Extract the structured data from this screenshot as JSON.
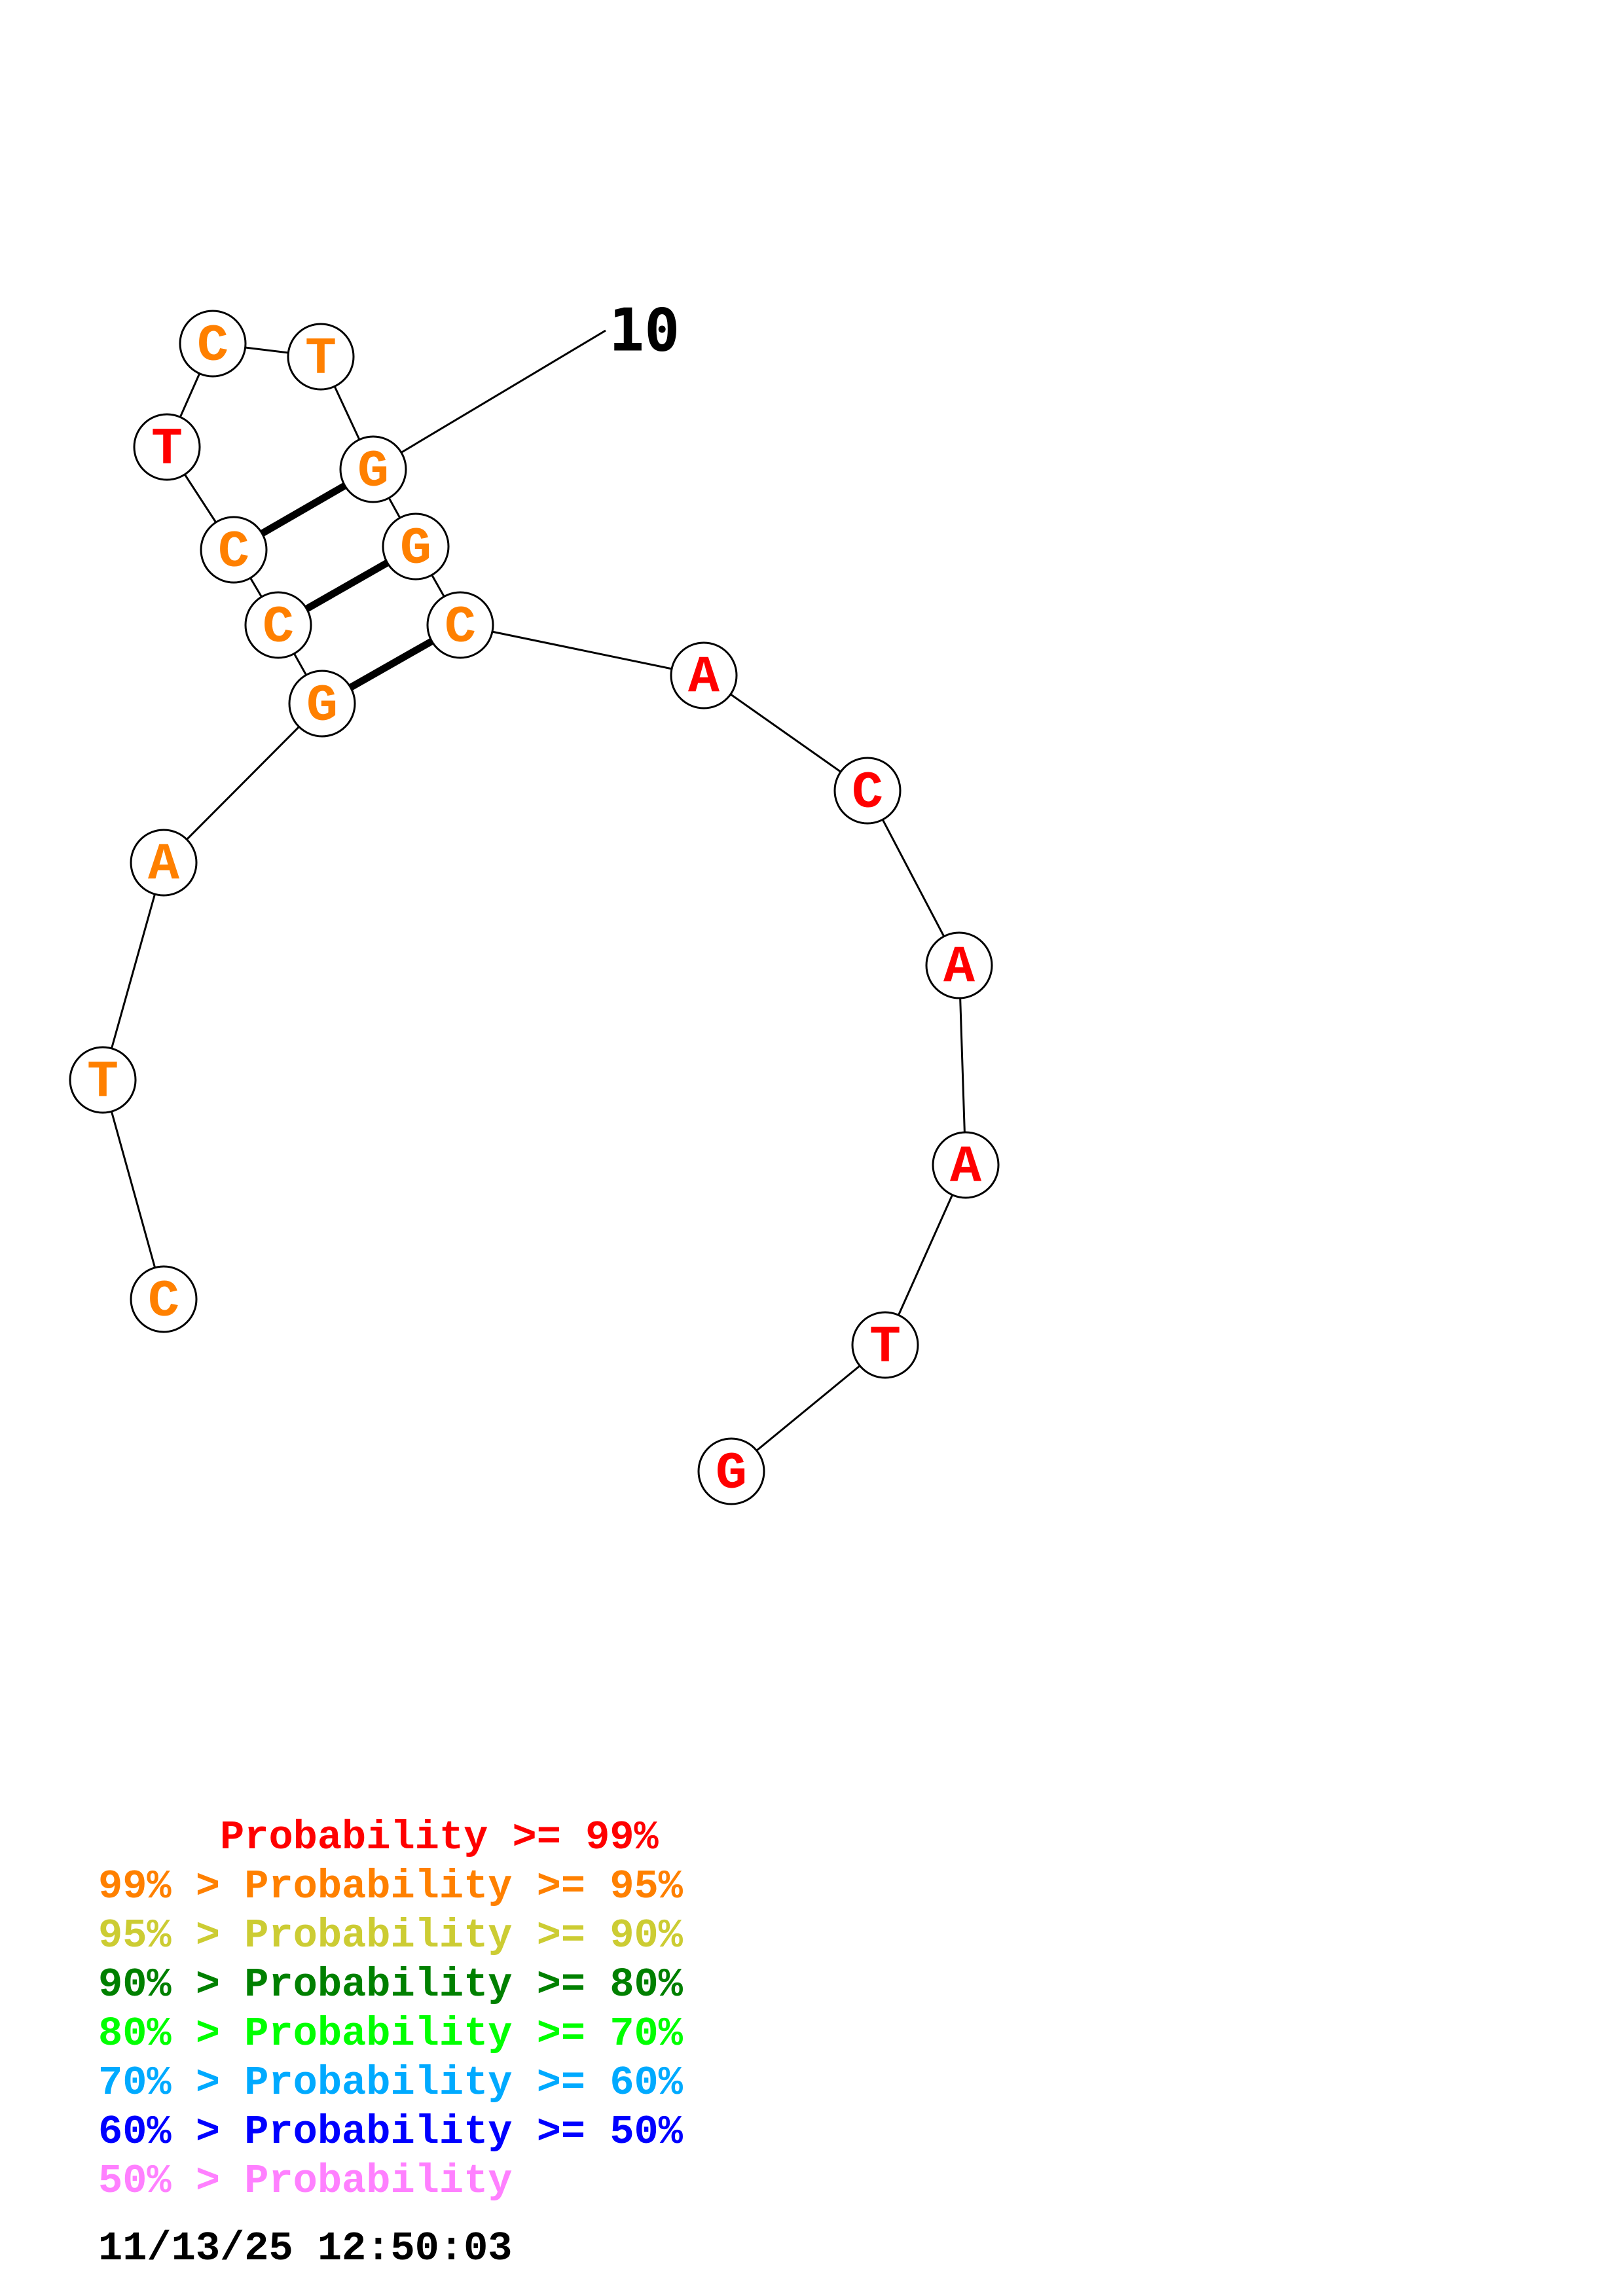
{
  "structure": {
    "nodes": [
      {
        "base": "C",
        "color": "#ff8000"
      },
      {
        "base": "T",
        "color": "#ff8000"
      },
      {
        "base": "A",
        "color": "#ff8000"
      },
      {
        "base": "G",
        "color": "#ff8000"
      },
      {
        "base": "C",
        "color": "#ff8000"
      },
      {
        "base": "C",
        "color": "#ff8000"
      },
      {
        "base": "T",
        "color": "#ff0000"
      },
      {
        "base": "C",
        "color": "#ff8000"
      },
      {
        "base": "T",
        "color": "#ff8000"
      },
      {
        "base": "G",
        "color": "#ff8000"
      },
      {
        "base": "G",
        "color": "#ff8000"
      },
      {
        "base": "C",
        "color": "#ff8000"
      },
      {
        "base": "A",
        "color": "#ff0000"
      },
      {
        "base": "C",
        "color": "#ff0000"
      },
      {
        "base": "A",
        "color": "#ff0000"
      },
      {
        "base": "A",
        "color": "#ff0000"
      },
      {
        "base": "T",
        "color": "#ff0000"
      },
      {
        "base": "G",
        "color": "#ff0000"
      }
    ],
    "pairs": [
      [
        3,
        11
      ],
      [
        4,
        10
      ],
      [
        5,
        9
      ]
    ],
    "numbering": [
      {
        "node": 9,
        "label": "10"
      }
    ]
  },
  "legend": [
    {
      "text": "     Probability >= 99%",
      "color": "#ff0000"
    },
    {
      "text": "99% > Probability >= 95%",
      "color": "#ff8000"
    },
    {
      "text": "95% > Probability >= 90%",
      "color": "#cccc33"
    },
    {
      "text": "90% > Probability >= 80%",
      "color": "#008000"
    },
    {
      "text": "80% > Probability >= 70%",
      "color": "#00ff00"
    },
    {
      "text": "70% > Probability >= 60%",
      "color": "#00aaff"
    },
    {
      "text": "60% > Probability >= 50%",
      "color": "#0000ff"
    },
    {
      "text": "50% > Probability",
      "color": "#ff80ff"
    }
  ],
  "timestamp": "11/13/25 12:50:03"
}
